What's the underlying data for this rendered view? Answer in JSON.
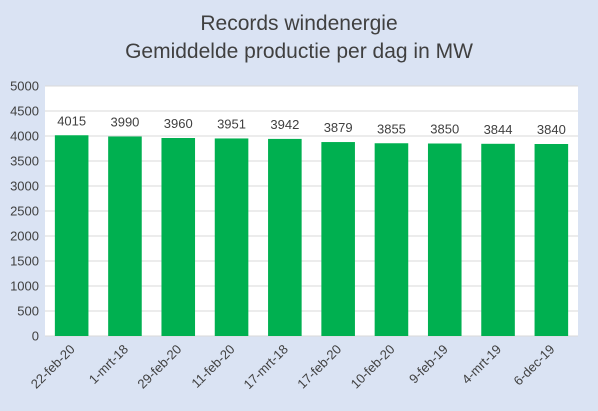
{
  "chart_data": {
    "type": "bar",
    "title": "Records windenergie",
    "subtitle": "Gemiddelde productie per dag in MW",
    "xlabel": "",
    "ylabel": "",
    "categories": [
      "22-feb-20",
      "1-mrt-18",
      "29-feb-20",
      "11-feb-20",
      "17-mrt-18",
      "17-feb-20",
      "10-feb-20",
      "9-feb-19",
      "4-mrt-19",
      "6-dec-19"
    ],
    "values": [
      4015,
      3990,
      3960,
      3951,
      3942,
      3879,
      3855,
      3850,
      3844,
      3840
    ],
    "ylim": [
      0,
      5000
    ],
    "yticks": [
      0,
      500,
      1000,
      1500,
      2000,
      2500,
      3000,
      3500,
      4000,
      4500,
      5000
    ],
    "grid": true,
    "legend": "none",
    "colors": {
      "bar": "#00b050",
      "plot_bg": "#ffffff",
      "page_bg": "#dae3f3",
      "grid": "#d9d9d9",
      "text": "#404040"
    }
  }
}
